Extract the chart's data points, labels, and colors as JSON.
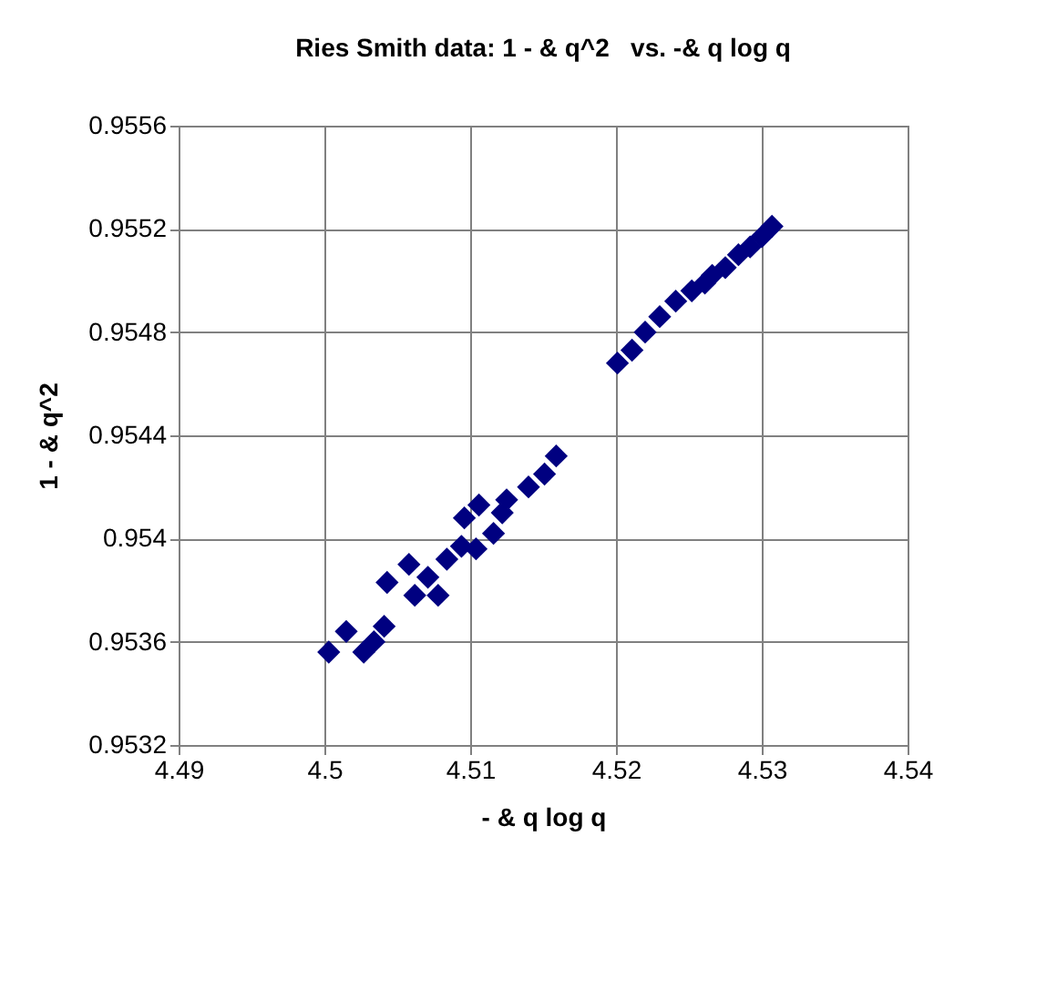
{
  "chart_data": {
    "type": "scatter",
    "title": "Ries Smith data: 1 - & q^2   vs. -& q log q",
    "xlabel": "- & q log q",
    "ylabel": "1 - & q^2",
    "xlim": [
      4.49,
      4.54
    ],
    "xticks": [
      4.49,
      4.5,
      4.51,
      4.52,
      4.53,
      4.54
    ],
    "ylim": [
      0.9532,
      0.9556
    ],
    "yticks": [
      0.9532,
      0.9536,
      0.954,
      0.9544,
      0.9548,
      0.9552,
      0.9556
    ],
    "grid": true,
    "marker": "diamond",
    "series": [
      {
        "color": "#000080",
        "x": [
          4.5003,
          4.5015,
          4.5027,
          4.5034,
          4.5041,
          4.5043,
          4.5058,
          4.5062,
          4.5071,
          4.5078,
          4.5084,
          4.5094,
          4.5096,
          4.5104,
          4.5106,
          4.5116,
          4.5122,
          4.5125,
          4.514,
          4.5151,
          4.5159,
          4.5201,
          4.5211,
          4.522,
          4.523,
          4.5241,
          4.5252,
          4.5261,
          4.5266,
          4.5275,
          4.5284,
          4.5292,
          4.53,
          4.5307
        ],
        "values": [
          0.95356,
          0.95364,
          0.95356,
          0.9536,
          0.95366,
          0.95383,
          0.9539,
          0.95378,
          0.95385,
          0.95378,
          0.95392,
          0.95397,
          0.95408,
          0.95396,
          0.95413,
          0.95402,
          0.9541,
          0.95415,
          0.9542,
          0.95425,
          0.95432,
          0.95468,
          0.95473,
          0.9548,
          0.95486,
          0.95492,
          0.95496,
          0.95499,
          0.95502,
          0.95505,
          0.9551,
          0.95513,
          0.95517,
          0.95521
        ]
      }
    ]
  }
}
